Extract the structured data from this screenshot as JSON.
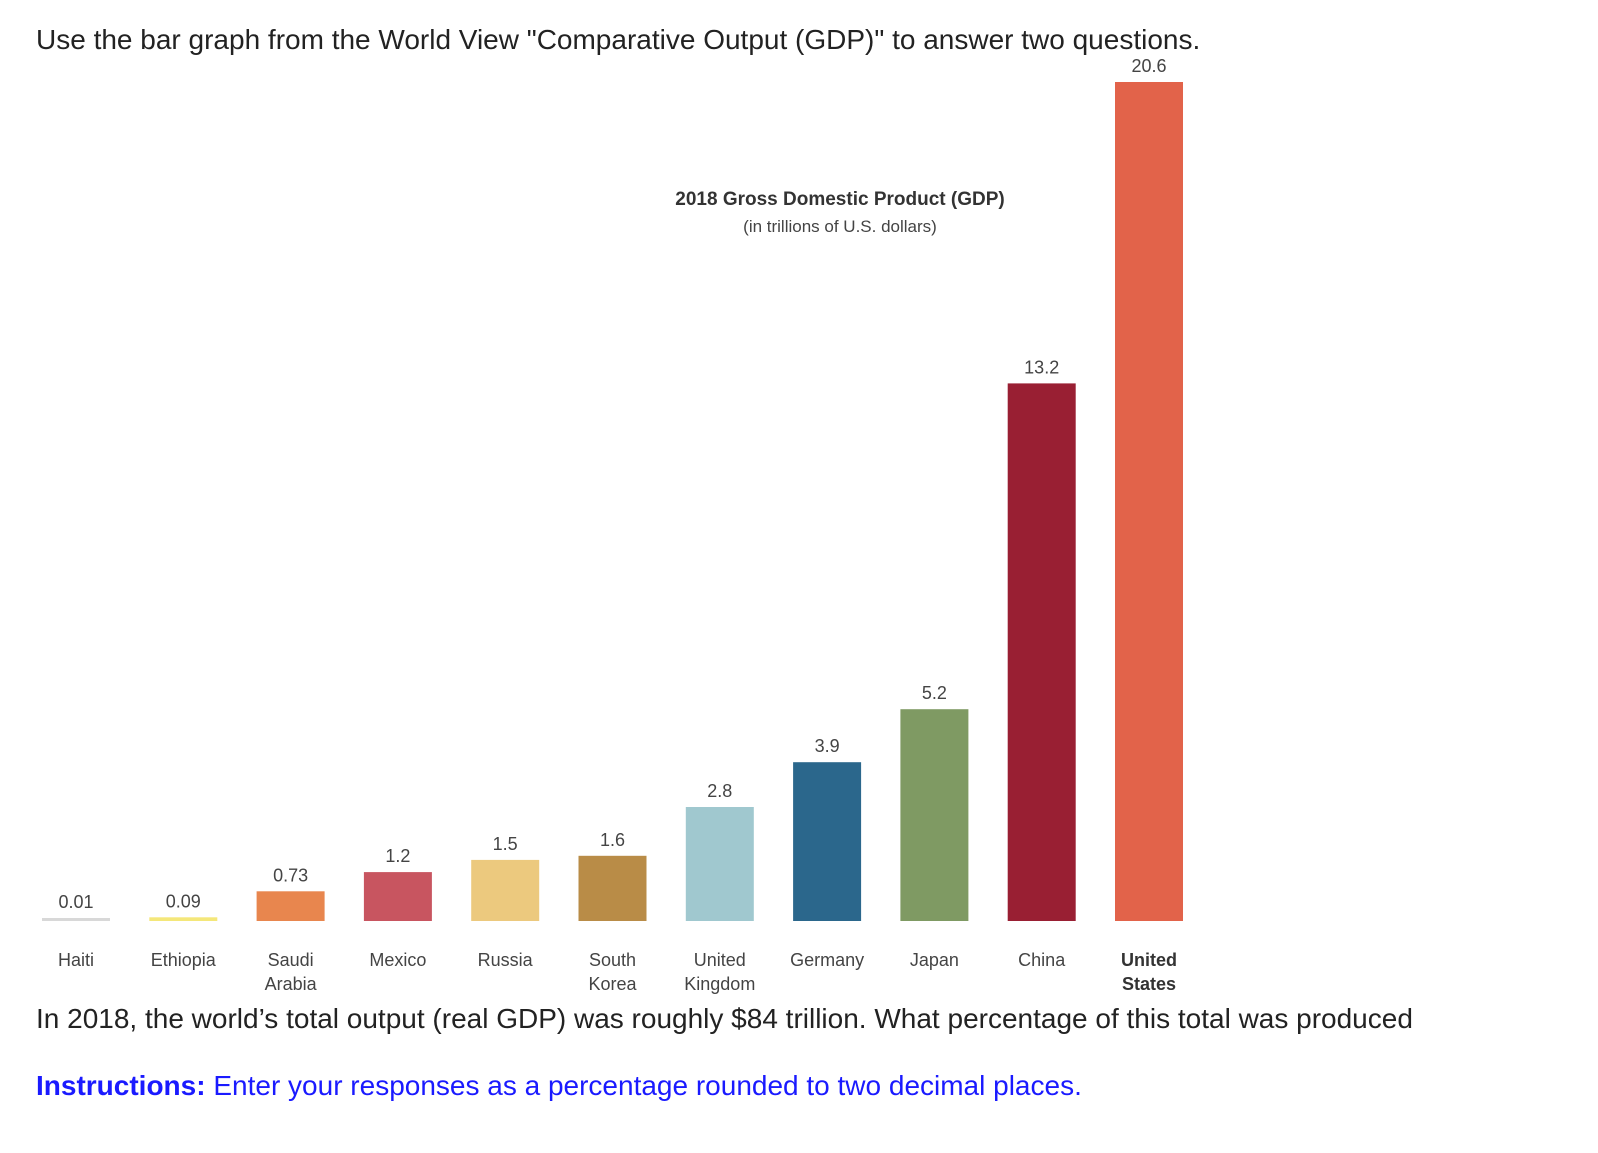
{
  "intro_text": "Use the bar graph from the World View \"Comparative Output (GDP)\" to answer two questions.",
  "question_text": "In 2018, the world’s total output (real GDP) was roughly $84 trillion. What percentage of this total was produced",
  "instructions": {
    "label": "Instructions:",
    "text": " Enter your responses as a percentage rounded to two decimal places."
  },
  "chart_data": {
    "type": "bar",
    "title": "2018 Gross Domestic Product (GDP)",
    "subtitle": "(in trillions of U.S. dollars)",
    "categories": [
      [
        "Haiti"
      ],
      [
        "Ethiopia"
      ],
      [
        "Saudi",
        "Arabia"
      ],
      [
        "Mexico"
      ],
      [
        "Russia"
      ],
      [
        "South",
        "Korea"
      ],
      [
        "United",
        "Kingdom"
      ],
      [
        "Germany"
      ],
      [
        "Japan"
      ],
      [
        "China"
      ],
      [
        "United",
        "States"
      ]
    ],
    "values": [
      0.01,
      0.09,
      0.73,
      1.2,
      1.5,
      1.6,
      2.8,
      3.9,
      5.2,
      13.2,
      20.6
    ],
    "value_labels": [
      "0.01",
      "0.09",
      "0.73",
      "1.2",
      "1.5",
      "1.6",
      "2.8",
      "3.9",
      "5.2",
      "13.2",
      "20.6"
    ],
    "colors": [
      "#d8d8d8",
      "#f4e77a",
      "#e8864e",
      "#c85560",
      "#ecc97e",
      "#b98c47",
      "#a0c8cf",
      "#2b678c",
      "#7f9a63",
      "#991f33",
      "#e2634a"
    ],
    "bold_category_index": 10,
    "xlabel": "",
    "ylabel": "",
    "ylim": [
      0,
      20.6
    ],
    "grid": false,
    "legend": "none"
  }
}
